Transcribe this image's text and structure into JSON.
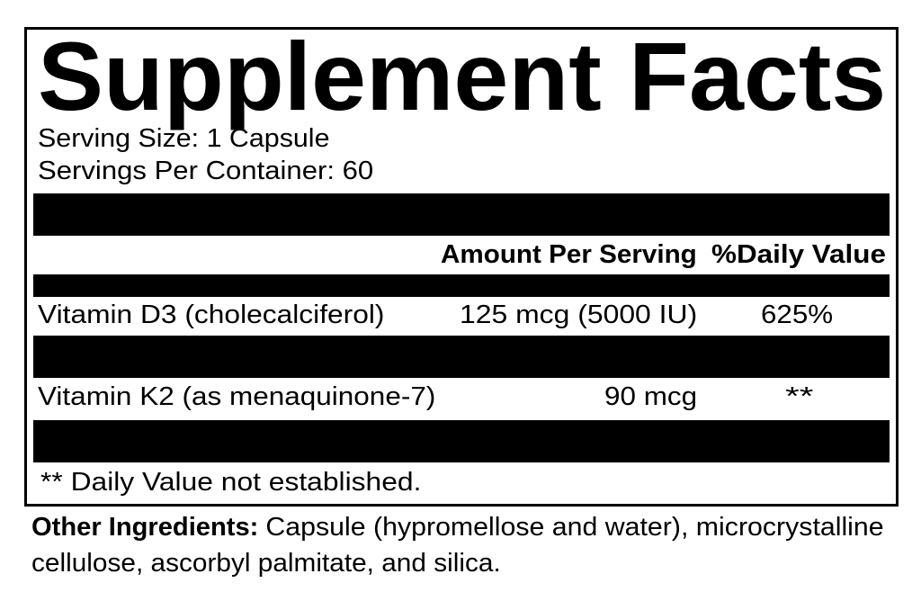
{
  "label": {
    "title": "Supplement Facts",
    "serving_size": "Serving Size: 1 Capsule",
    "servings_per_container": "Servings Per Container: 60",
    "header": {
      "amount": "Amount Per Serving",
      "daily_value": "%Daily Value"
    },
    "nutrients": [
      {
        "name": "Vitamin D3 (cholecalciferol)",
        "amount": "125 mcg (5000 IU)",
        "dv": "625%"
      },
      {
        "name": "Vitamin K2 (as menaquinone-7)",
        "amount": "90 mcg",
        "dv": "**"
      }
    ],
    "footnote": "** Daily Value not established.",
    "other_ingredients_label": "Other Ingredients:",
    "other_ingredients_line1": " Capsule (hypromellose and water), microcrystalline",
    "other_ingredients_line2": "cellulose, ascorbyl palmitate, and silica."
  }
}
